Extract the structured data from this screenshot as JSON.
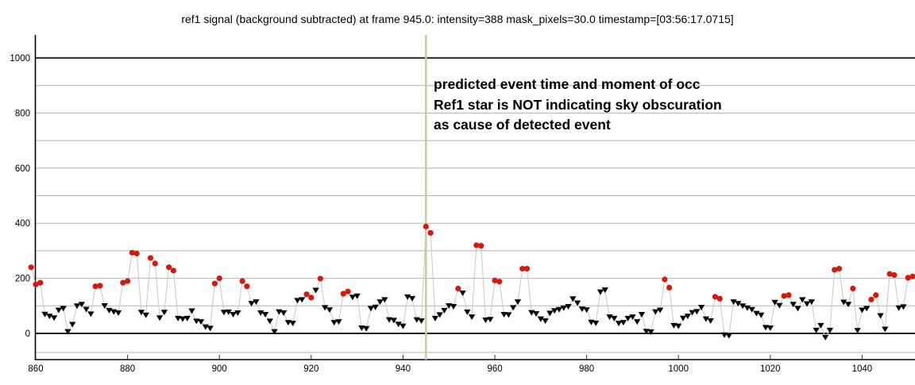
{
  "title": "ref1 signal (background subtracted) at frame 945.0: intensity=388 mask_pixels=30.0 timestamp=[03:56:17.0715]",
  "annotation": {
    "lines": [
      "predicted event time and moment of occ",
      "Ref1 star is NOT indicating sky obscuration",
      "as cause of detected event"
    ]
  },
  "chart_data": {
    "type": "scatter",
    "title": "ref1 signal (background subtracted) at frame 945.0: intensity=388 mask_pixels=30.0 timestamp=[03:56:17.0715]",
    "xlabel": "",
    "ylabel": "",
    "x_ticks": [
      860,
      880,
      900,
      920,
      940,
      960,
      980,
      1000,
      1020,
      1040
    ],
    "y_ticks": [
      0,
      200,
      400,
      600,
      800,
      1000
    ],
    "xlim": [
      859,
      1051.5
    ],
    "ylim": [
      -95,
      1080
    ],
    "grid": "horizontal lines every 100 units; 0 and 1000 lines dark",
    "legend": "none",
    "event_line_x": 945,
    "peak": {
      "frame": 945,
      "intensity": 388
    },
    "colors": {
      "high_marker": "#d6190f",
      "low_marker": "#0a0a0a",
      "series_line": "#c8c8c8",
      "event_line": "#ccce97",
      "grid_light": "#b3b3b3",
      "grid_dark": "#3a3a3a",
      "axis": "#000000"
    },
    "marker_legend": "r = red filled circle (bright sample), t = black down-triangle (faint sample)",
    "series": [
      {
        "name": "ref1 signal",
        "points": [
          [
            859,
            240,
            "r"
          ],
          [
            860,
            178,
            "r"
          ],
          [
            861,
            184,
            "r"
          ],
          [
            862,
            70,
            "t"
          ],
          [
            863,
            63,
            "t"
          ],
          [
            864,
            57,
            "t"
          ],
          [
            865,
            85,
            "t"
          ],
          [
            866,
            91,
            "t"
          ],
          [
            867,
            7,
            "t"
          ],
          [
            868,
            33,
            "t"
          ],
          [
            869,
            100,
            "t"
          ],
          [
            870,
            106,
            "t"
          ],
          [
            871,
            88,
            "t"
          ],
          [
            872,
            71,
            "t"
          ],
          [
            873,
            171,
            "r"
          ],
          [
            874,
            173,
            "r"
          ],
          [
            875,
            101,
            "t"
          ],
          [
            876,
            84,
            "t"
          ],
          [
            877,
            79,
            "t"
          ],
          [
            878,
            75,
            "t"
          ],
          [
            879,
            184,
            "r"
          ],
          [
            880,
            190,
            "r"
          ],
          [
            881,
            293,
            "r"
          ],
          [
            882,
            290,
            "r"
          ],
          [
            883,
            77,
            "t"
          ],
          [
            884,
            67,
            "t"
          ],
          [
            885,
            274,
            "r"
          ],
          [
            886,
            254,
            "r"
          ],
          [
            887,
            57,
            "t"
          ],
          [
            888,
            77,
            "t"
          ],
          [
            889,
            240,
            "r"
          ],
          [
            890,
            228,
            "r"
          ],
          [
            891,
            55,
            "t"
          ],
          [
            892,
            53,
            "t"
          ],
          [
            893,
            55,
            "t"
          ],
          [
            894,
            82,
            "t"
          ],
          [
            895,
            45,
            "t"
          ],
          [
            896,
            43,
            "t"
          ],
          [
            897,
            24,
            "t"
          ],
          [
            898,
            19,
            "t"
          ],
          [
            899,
            181,
            "r"
          ],
          [
            900,
            200,
            "r"
          ],
          [
            901,
            77,
            "t"
          ],
          [
            902,
            78,
            "t"
          ],
          [
            903,
            69,
            "t"
          ],
          [
            904,
            75,
            "t"
          ],
          [
            905,
            190,
            "r"
          ],
          [
            906,
            171,
            "r"
          ],
          [
            907,
            109,
            "t"
          ],
          [
            908,
            115,
            "t"
          ],
          [
            909,
            75,
            "t"
          ],
          [
            910,
            69,
            "t"
          ],
          [
            911,
            45,
            "t"
          ],
          [
            912,
            7,
            "t"
          ],
          [
            913,
            79,
            "t"
          ],
          [
            914,
            75,
            "t"
          ],
          [
            915,
            40,
            "t"
          ],
          [
            916,
            37,
            "t"
          ],
          [
            917,
            120,
            "t"
          ],
          [
            918,
            123,
            "t"
          ],
          [
            919,
            142,
            "r"
          ],
          [
            920,
            130,
            "r"
          ],
          [
            921,
            157,
            "t"
          ],
          [
            922,
            199,
            "r"
          ],
          [
            923,
            94,
            "t"
          ],
          [
            924,
            86,
            "t"
          ],
          [
            925,
            40,
            "t"
          ],
          [
            926,
            43,
            "t"
          ],
          [
            927,
            144,
            "r"
          ],
          [
            928,
            152,
            "r"
          ],
          [
            929,
            132,
            "t"
          ],
          [
            930,
            136,
            "t"
          ],
          [
            931,
            20,
            "t"
          ],
          [
            932,
            18,
            "t"
          ],
          [
            933,
            91,
            "t"
          ],
          [
            934,
            96,
            "t"
          ],
          [
            935,
            115,
            "t"
          ],
          [
            936,
            123,
            "t"
          ],
          [
            937,
            50,
            "t"
          ],
          [
            938,
            48,
            "t"
          ],
          [
            939,
            34,
            "t"
          ],
          [
            940,
            27,
            "t"
          ],
          [
            941,
            133,
            "t"
          ],
          [
            942,
            127,
            "t"
          ],
          [
            943,
            50,
            "t"
          ],
          [
            944,
            46,
            "t"
          ],
          [
            945,
            388,
            "r"
          ],
          [
            946,
            365,
            "r"
          ],
          [
            947,
            55,
            "t"
          ],
          [
            948,
            68,
            "t"
          ],
          [
            949,
            84,
            "t"
          ],
          [
            950,
            101,
            "t"
          ],
          [
            951,
            98,
            "t"
          ],
          [
            952,
            163,
            "r"
          ],
          [
            953,
            147,
            "t"
          ],
          [
            954,
            78,
            "t"
          ],
          [
            955,
            60,
            "t"
          ],
          [
            956,
            320,
            "r"
          ],
          [
            957,
            318,
            "r"
          ],
          [
            958,
            49,
            "t"
          ],
          [
            959,
            51,
            "t"
          ],
          [
            960,
            192,
            "r"
          ],
          [
            961,
            188,
            "r"
          ],
          [
            962,
            69,
            "t"
          ],
          [
            963,
            68,
            "t"
          ],
          [
            964,
            94,
            "t"
          ],
          [
            965,
            115,
            "t"
          ],
          [
            966,
            235,
            "r"
          ],
          [
            967,
            235,
            "r"
          ],
          [
            968,
            76,
            "t"
          ],
          [
            969,
            72,
            "t"
          ],
          [
            970,
            53,
            "t"
          ],
          [
            971,
            46,
            "t"
          ],
          [
            972,
            74,
            "t"
          ],
          [
            973,
            83,
            "t"
          ],
          [
            974,
            87,
            "t"
          ],
          [
            975,
            93,
            "t"
          ],
          [
            976,
            98,
            "t"
          ],
          [
            977,
            126,
            "t"
          ],
          [
            978,
            111,
            "t"
          ],
          [
            979,
            89,
            "t"
          ],
          [
            980,
            86,
            "t"
          ],
          [
            981,
            41,
            "t"
          ],
          [
            982,
            38,
            "t"
          ],
          [
            983,
            151,
            "t"
          ],
          [
            984,
            158,
            "t"
          ],
          [
            985,
            60,
            "t"
          ],
          [
            986,
            55,
            "t"
          ],
          [
            987,
            37,
            "t"
          ],
          [
            988,
            40,
            "t"
          ],
          [
            989,
            55,
            "t"
          ],
          [
            990,
            60,
            "t"
          ],
          [
            991,
            43,
            "t"
          ],
          [
            992,
            69,
            "t"
          ],
          [
            993,
            8,
            "t"
          ],
          [
            994,
            6,
            "t"
          ],
          [
            995,
            79,
            "t"
          ],
          [
            996,
            85,
            "t"
          ],
          [
            997,
            196,
            "r"
          ],
          [
            998,
            166,
            "r"
          ],
          [
            999,
            29,
            "t"
          ],
          [
            1000,
            27,
            "t"
          ],
          [
            1001,
            56,
            "t"
          ],
          [
            1002,
            63,
            "t"
          ],
          [
            1003,
            76,
            "t"
          ],
          [
            1004,
            80,
            "t"
          ],
          [
            1005,
            95,
            "t"
          ],
          [
            1006,
            53,
            "t"
          ],
          [
            1007,
            46,
            "t"
          ],
          [
            1008,
            133,
            "r"
          ],
          [
            1009,
            126,
            "r"
          ],
          [
            1010,
            -5,
            "t"
          ],
          [
            1011,
            -8,
            "t"
          ],
          [
            1012,
            115,
            "t"
          ],
          [
            1013,
            109,
            "t"
          ],
          [
            1014,
            100,
            "t"
          ],
          [
            1015,
            93,
            "t"
          ],
          [
            1016,
            87,
            "t"
          ],
          [
            1017,
            73,
            "t"
          ],
          [
            1018,
            67,
            "t"
          ],
          [
            1019,
            22,
            "t"
          ],
          [
            1020,
            20,
            "t"
          ],
          [
            1021,
            113,
            "t"
          ],
          [
            1022,
            102,
            "t"
          ],
          [
            1023,
            136,
            "r"
          ],
          [
            1024,
            139,
            "r"
          ],
          [
            1025,
            106,
            "t"
          ],
          [
            1026,
            91,
            "t"
          ],
          [
            1027,
            123,
            "t"
          ],
          [
            1028,
            108,
            "t"
          ],
          [
            1029,
            115,
            "t"
          ],
          [
            1030,
            12,
            "t"
          ],
          [
            1031,
            29,
            "t"
          ],
          [
            1032,
            -14,
            "t"
          ],
          [
            1033,
            12,
            "t"
          ],
          [
            1034,
            231,
            "r"
          ],
          [
            1035,
            235,
            "r"
          ],
          [
            1036,
            114,
            "t"
          ],
          [
            1037,
            106,
            "t"
          ],
          [
            1038,
            163,
            "r"
          ],
          [
            1039,
            11,
            "t"
          ],
          [
            1040,
            85,
            "t"
          ],
          [
            1041,
            91,
            "t"
          ],
          [
            1042,
            123,
            "r"
          ],
          [
            1043,
            139,
            "r"
          ],
          [
            1044,
            65,
            "t"
          ],
          [
            1045,
            16,
            "t"
          ],
          [
            1046,
            216,
            "r"
          ],
          [
            1047,
            212,
            "r"
          ],
          [
            1048,
            93,
            "t"
          ],
          [
            1049,
            97,
            "t"
          ],
          [
            1050,
            202,
            "r"
          ],
          [
            1051,
            207,
            "r"
          ]
        ]
      }
    ]
  }
}
